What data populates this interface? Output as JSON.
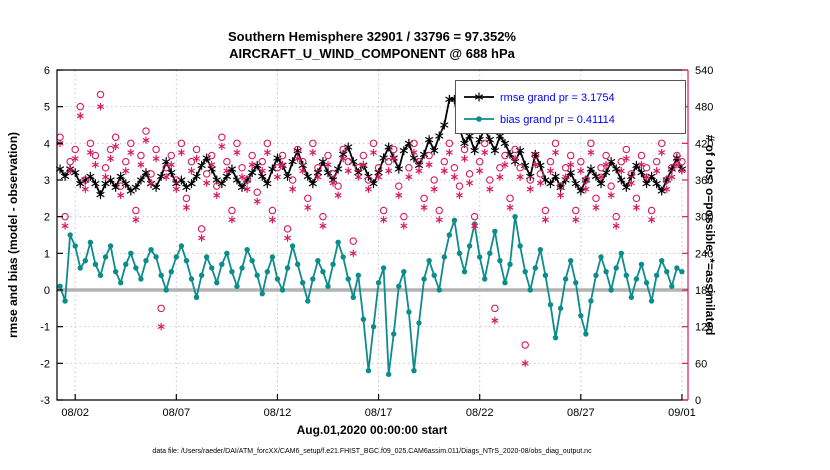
{
  "title": {
    "line1": "Southern Hemisphere 32901 / 33796 = 97.352%",
    "line2": "AIRCRAFT_U_WIND_COMPONENT @ 688 hPa"
  },
  "axes": {
    "left_label": "rmse and bias (model - observation)",
    "right_label": "# of obs: o=possible; *=assimilated",
    "x_label": "Aug.01,2020 00:00:00 start",
    "left_ticks": [
      -3,
      -2,
      -1,
      0,
      1,
      2,
      3,
      4,
      5,
      6
    ],
    "right_ticks": [
      0,
      60,
      120,
      180,
      240,
      300,
      360,
      420,
      480,
      540
    ],
    "x_tick_labels": [
      "08/02",
      "08/07",
      "08/12",
      "08/17",
      "08/22",
      "08/27",
      "09/01"
    ],
    "x_tick_days": [
      1,
      6,
      11,
      16,
      21,
      26,
      31
    ]
  },
  "legend": {
    "rmse": "rmse grand pr = 3.1754",
    "bias": "bias grand pr = 0.41114"
  },
  "footer": "data file: /Users/raeder/DAI/ATM_forcXX/CAM6_setup/f.e21.FHIST_BGC.f09_025.CAM6assim.011/Diags_NTrS_2020-08/obs_diag_output.nc",
  "colors": {
    "rmse": "#000000",
    "bias": "#0d8c8c",
    "obs": "#d81b60",
    "legend_text": "#0000ff",
    "zero_line": "#b3b3b3",
    "grid": "#c8c8c8"
  },
  "chart_data": {
    "type": "line",
    "title": "Southern Hemisphere 32901 / 33796 = 97.352% | AIRCRAFT_U_WIND_COMPONENT @ 688 hPa",
    "xlabel": "Aug.01,2020 00:00:00 start",
    "ylabel_left": "rmse and bias (model - observation)",
    "ylabel_right": "# of obs: o=possible; *=assimilated",
    "x_range": [
      0.1,
      31.3
    ],
    "left_ylim": [
      -3,
      6
    ],
    "right_ylim": [
      0,
      540
    ],
    "t_start": 0.25,
    "t_step": 0.25,
    "grand_rmse": 3.1754,
    "grand_bias": 0.41114,
    "series": [
      {
        "name": "rmse",
        "axis": "left",
        "marker": "asterisk",
        "line": true,
        "values": [
          3.3,
          3.1,
          3.3,
          3.2,
          2.9,
          3.0,
          3.1,
          2.9,
          2.6,
          2.9,
          3.0,
          2.8,
          3.1,
          2.9,
          2.7,
          2.8,
          3.0,
          3.2,
          2.9,
          2.8,
          3.1,
          3.5,
          3.2,
          2.9,
          3.0,
          2.8,
          2.9,
          3.1,
          3.4,
          3.6,
          3.3,
          3.0,
          2.9,
          3.1,
          3.3,
          3.0,
          2.8,
          3.0,
          3.2,
          3.4,
          3.1,
          2.9,
          3.3,
          3.6,
          3.4,
          3.1,
          3.5,
          3.8,
          3.4,
          3.1,
          2.9,
          3.2,
          3.5,
          3.2,
          3.0,
          3.3,
          3.7,
          3.9,
          3.5,
          3.2,
          3.4,
          3.1,
          2.9,
          3.2,
          3.6,
          3.9,
          3.6,
          3.3,
          3.8,
          4.0,
          3.6,
          3.4,
          3.7,
          4.1,
          3.8,
          4.2,
          4.5,
          5.2,
          5.2,
          4.4,
          4.0,
          4.2,
          3.8,
          4.1,
          4.4,
          4.1,
          3.8,
          4.2,
          4.0,
          3.7,
          3.5,
          3.8,
          3.4,
          3.1,
          3.7,
          3.4,
          3.0,
          2.9,
          3.1,
          2.8,
          3.0,
          3.2,
          2.9,
          2.7,
          3.0,
          3.3,
          3.1,
          2.9,
          3.2,
          3.5,
          3.3,
          3.0,
          2.8,
          3.1,
          3.4,
          3.2,
          2.9,
          3.1,
          2.9,
          2.7,
          3.0,
          3.3,
          3.6,
          3.3
        ]
      },
      {
        "name": "bias",
        "axis": "left",
        "marker": "dot",
        "line": true,
        "values": [
          0.1,
          -0.3,
          1.5,
          1.2,
          0.6,
          0.8,
          1.3,
          0.7,
          0.4,
          0.9,
          1.2,
          0.5,
          0.2,
          0.7,
          1.0,
          0.6,
          0.3,
          0.8,
          1.1,
          0.9,
          0.4,
          0.0,
          0.5,
          0.9,
          1.2,
          0.8,
          0.3,
          -0.2,
          0.4,
          0.9,
          0.6,
          0.2,
          0.7,
          1.0,
          0.5,
          0.1,
          0.6,
          1.1,
          0.8,
          0.4,
          -0.1,
          0.5,
          0.9,
          0.3,
          0.0,
          0.6,
          1.2,
          0.7,
          0.2,
          -0.3,
          0.3,
          0.8,
          0.5,
          0.1,
          0.7,
          1.3,
          0.9,
          0.3,
          -0.2,
          0.4,
          -0.8,
          -2.2,
          -1.0,
          0.2,
          0.6,
          -2.3,
          -1.2,
          0.1,
          0.5,
          -0.6,
          -2.2,
          -0.9,
          0.3,
          0.8,
          0.4,
          0.0,
          0.9,
          1.5,
          1.9,
          1.0,
          0.5,
          1.2,
          1.8,
          0.9,
          0.3,
          1.0,
          1.6,
          0.8,
          0.2,
          0.7,
          2.0,
          1.2,
          0.5,
          0.0,
          0.6,
          1.1,
          0.4,
          -0.4,
          -1.3,
          -0.5,
          0.3,
          0.8,
          0.2,
          -0.7,
          -1.2,
          -0.3,
          0.4,
          0.9,
          0.5,
          0.0,
          0.6,
          1.0,
          0.4,
          -0.2,
          0.3,
          0.7,
          0.2,
          -0.3,
          0.4,
          0.8,
          0.5,
          0.1,
          0.6,
          0.5
        ]
      },
      {
        "name": "possible_obs",
        "axis": "right",
        "marker": "circle",
        "line": false,
        "values": [
          430,
          300,
          390,
          410,
          480,
          360,
          420,
          400,
          500,
          380,
          410,
          430,
          350,
          390,
          420,
          310,
          400,
          440,
          370,
          410,
          150,
          380,
          400,
          360,
          420,
          330,
          390,
          410,
          280,
          370,
          400,
          350,
          430,
          390,
          310,
          420,
          380,
          360,
          400,
          340,
          390,
          420,
          310,
          380,
          400,
          280,
          360,
          410,
          390,
          330,
          420,
          380,
          300,
          400,
          370,
          350,
          410,
          390,
          260,
          380,
          400,
          360,
          420,
          380,
          310,
          390,
          410,
          350,
          300,
          380,
          420,
          390,
          330,
          400,
          360,
          310,
          390,
          420,
          380,
          350,
          410,
          370,
          300,
          390,
          420,
          360,
          150,
          380,
          400,
          330,
          410,
          380,
          90,
          360,
          400,
          370,
          310,
          390,
          420,
          350,
          380,
          400,
          310,
          390,
          360,
          420,
          330,
          380,
          400,
          350,
          300,
          390,
          410,
          370,
          330,
          400,
          380,
          310,
          390,
          420,
          360,
          380,
          400,
          390
        ]
      },
      {
        "name": "assimilated_obs",
        "axis": "right",
        "marker": "asterisk",
        "line": false,
        "values": [
          420,
          285,
          375,
          395,
          465,
          345,
          405,
          385,
          480,
          365,
          395,
          415,
          335,
          375,
          405,
          295,
          385,
          425,
          355,
          395,
          120,
          365,
          385,
          345,
          405,
          315,
          375,
          395,
          265,
          355,
          385,
          335,
          415,
          375,
          295,
          405,
          365,
          345,
          385,
          325,
          375,
          405,
          295,
          365,
          385,
          265,
          345,
          395,
          375,
          315,
          405,
          365,
          285,
          385,
          355,
          335,
          395,
          375,
          240,
          365,
          385,
          345,
          405,
          365,
          295,
          375,
          395,
          335,
          285,
          365,
          405,
          375,
          315,
          385,
          345,
          295,
          375,
          405,
          365,
          335,
          395,
          355,
          285,
          375,
          405,
          345,
          130,
          365,
          385,
          315,
          395,
          365,
          60,
          345,
          385,
          355,
          295,
          375,
          405,
          335,
          365,
          385,
          295,
          375,
          345,
          405,
          315,
          365,
          385,
          335,
          285,
          375,
          395,
          355,
          315,
          385,
          365,
          295,
          375,
          405,
          345,
          365,
          385,
          375
        ]
      }
    ]
  }
}
